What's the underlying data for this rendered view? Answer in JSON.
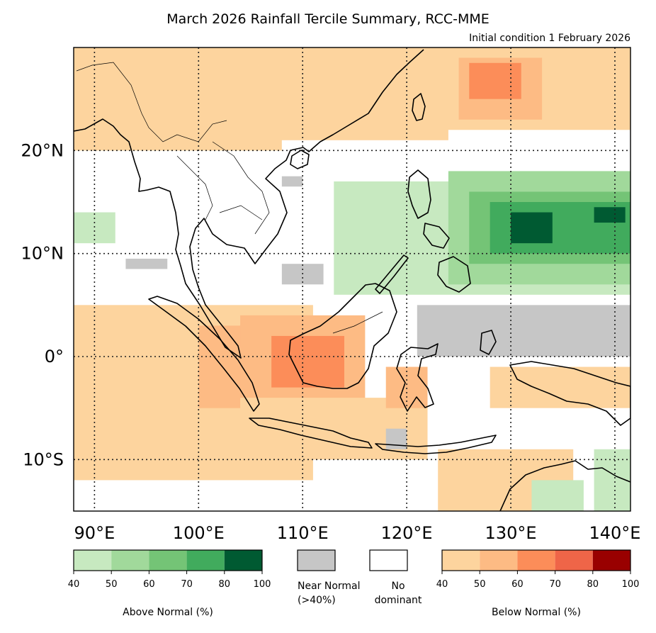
{
  "title": "March 2026 Rainfall Tercile Summary, RCC-MME",
  "subtitle": "Initial condition 1 February 2026",
  "map": {
    "extent": {
      "lon_min": 88,
      "lon_max": 141.5,
      "lat_min": -15,
      "lat_max": 30
    },
    "lon_ticks": [
      {
        "value": 90,
        "label": "90°E"
      },
      {
        "value": 100,
        "label": "100°E"
      },
      {
        "value": 110,
        "label": "110°E"
      },
      {
        "value": 120,
        "label": "120°E"
      },
      {
        "value": 130,
        "label": "130°E"
      },
      {
        "value": 140,
        "label": "140°E"
      }
    ],
    "lat_ticks": [
      {
        "value": 20,
        "label": "20°N"
      },
      {
        "value": 10,
        "label": "10°N"
      },
      {
        "value": 0,
        "label": "0°"
      },
      {
        "value": -10,
        "label": "10°S"
      }
    ],
    "gridlines": true
  },
  "colors": {
    "above": [
      "#c7e9c0",
      "#a1d99b",
      "#74c476",
      "#41ab5d",
      "#005a32"
    ],
    "below": [
      "#fdd49e",
      "#fdbb84",
      "#fc8d59",
      "#ef6548",
      "#990000"
    ],
    "near_normal": "#c6c6c6",
    "no_dominant": "#ffffff",
    "coast": "#000000"
  },
  "legend": {
    "above": {
      "ticks": [
        "40",
        "50",
        "60",
        "70",
        "80",
        "100"
      ],
      "caption": "Above Normal (%)"
    },
    "near_normal": {
      "caption_1": "Near Normal",
      "caption_2": "(>40%)"
    },
    "no_dominant": {
      "caption_1": "No",
      "caption_2": "dominant"
    },
    "below": {
      "ticks": [
        "40",
        "50",
        "60",
        "70",
        "80",
        "100"
      ],
      "caption": "Below Normal (%)"
    }
  },
  "regions": [
    {
      "name": "north-india-below",
      "cat": "below",
      "level": 1,
      "lon": [
        88,
        108
      ],
      "lat": [
        20,
        30
      ]
    },
    {
      "name": "southchina-below",
      "cat": "below",
      "level": 1,
      "lon": [
        106,
        124
      ],
      "lat": [
        21,
        30
      ]
    },
    {
      "name": "nwpacific-below",
      "cat": "below",
      "level": 1,
      "lon": [
        122,
        141.5
      ],
      "lat": [
        22,
        30
      ]
    },
    {
      "name": "nwpacific-below-strong",
      "cat": "below",
      "level": 2,
      "lon": [
        125,
        133
      ],
      "lat": [
        23,
        29
      ]
    },
    {
      "name": "nwpacific-below-core",
      "cat": "below",
      "level": 3,
      "lon": [
        126,
        131
      ],
      "lat": [
        25,
        28.5
      ]
    },
    {
      "name": "bay-of-bengal-green",
      "cat": "above",
      "level": 1,
      "lon": [
        88,
        92
      ],
      "lat": [
        11,
        14
      ]
    },
    {
      "name": "indian-ocean-below",
      "cat": "below",
      "level": 1,
      "lon": [
        88,
        111
      ],
      "lat": [
        -12,
        5
      ]
    },
    {
      "name": "sumatra-below",
      "cat": "below",
      "level": 2,
      "lon": [
        100,
        108
      ],
      "lat": [
        -5,
        3
      ]
    },
    {
      "name": "borneo-below",
      "cat": "below",
      "level": 2,
      "lon": [
        104,
        116
      ],
      "lat": [
        -5,
        4
      ]
    },
    {
      "name": "borneo-below-strong",
      "cat": "below",
      "level": 3,
      "lon": [
        107,
        114
      ],
      "lat": [
        -3,
        2
      ]
    },
    {
      "name": "java-sea-below",
      "cat": "below",
      "level": 1,
      "lon": [
        104,
        122
      ],
      "lat": [
        -10,
        -4
      ]
    },
    {
      "name": "sulawesi-below",
      "cat": "below",
      "level": 2,
      "lon": [
        118,
        122
      ],
      "lat": [
        -5,
        -1
      ]
    },
    {
      "name": "png-below",
      "cat": "below",
      "level": 1,
      "lon": [
        128,
        141.5
      ],
      "lat": [
        -5,
        -1
      ]
    },
    {
      "name": "arafura-below",
      "cat": "below",
      "level": 1,
      "lon": [
        123,
        136
      ],
      "lat": [
        -15,
        -9
      ]
    },
    {
      "name": "philippine-green",
      "cat": "above",
      "level": 1,
      "lon": [
        113,
        141.5
      ],
      "lat": [
        6,
        17
      ]
    },
    {
      "name": "pacific-green-2",
      "cat": "above",
      "level": 2,
      "lon": [
        124,
        141.5
      ],
      "lat": [
        7,
        18
      ]
    },
    {
      "name": "pacific-green-3",
      "cat": "above",
      "level": 3,
      "lon": [
        126,
        141.5
      ],
      "lat": [
        9,
        16
      ]
    },
    {
      "name": "pacific-green-4",
      "cat": "above",
      "level": 4,
      "lon": [
        128,
        141.5
      ],
      "lat": [
        10,
        15
      ]
    },
    {
      "name": "pacific-green-5",
      "cat": "above",
      "level": 5,
      "lon": [
        130,
        134
      ],
      "lat": [
        11,
        14
      ]
    },
    {
      "name": "pacific-green-5b",
      "cat": "above",
      "level": 5,
      "lon": [
        138,
        141
      ],
      "lat": [
        13,
        14.5
      ]
    },
    {
      "name": "kimberley-green",
      "cat": "above",
      "level": 1,
      "lon": [
        132,
        137
      ],
      "lat": [
        -15,
        -12
      ]
    },
    {
      "name": "cape-york-green",
      "cat": "above",
      "level": 1,
      "lon": [
        138,
        141.5
      ],
      "lat": [
        -15,
        -9
      ]
    },
    {
      "name": "equatorial-grey",
      "cat": "near",
      "level": 0,
      "lon": [
        121,
        141.5
      ],
      "lat": [
        0,
        5
      ]
    },
    {
      "name": "scs-grey",
      "cat": "near",
      "level": 0,
      "lon": [
        108,
        112
      ],
      "lat": [
        7,
        9
      ]
    },
    {
      "name": "scs-grey-2",
      "cat": "near",
      "level": 0,
      "lon": [
        108,
        110
      ],
      "lat": [
        16.5,
        17.5
      ]
    },
    {
      "name": "andaman-grey",
      "cat": "near",
      "level": 0,
      "lon": [
        93,
        97
      ],
      "lat": [
        8.5,
        9.5
      ]
    },
    {
      "name": "timor-grey",
      "cat": "near",
      "level": 0,
      "lon": [
        118,
        120
      ],
      "lat": [
        -9,
        -7
      ]
    }
  ]
}
